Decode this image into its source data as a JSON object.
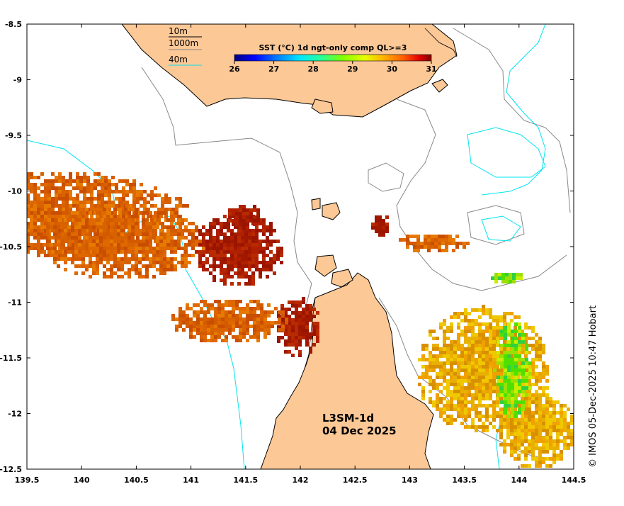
{
  "map": {
    "lon_ticks": [
      "139.5",
      "140",
      "140.5",
      "141",
      "141.5",
      "142",
      "142.5",
      "143",
      "143.5",
      "144",
      "144.5"
    ],
    "lat_ticks": [
      "-8.5",
      "-9",
      "-9.5",
      "-10",
      "-10.5",
      "-11",
      "-11.5",
      "-12",
      "-12.5"
    ],
    "lon_range": [
      139.5,
      144.5
    ],
    "lat_range": [
      -12.5,
      -8.5
    ]
  },
  "depth_legend": {
    "items": [
      {
        "label": "10m",
        "color": "#000000"
      },
      {
        "label": "1000m",
        "color": "#888888"
      },
      {
        "label": "40m",
        "color": "#00e5ee"
      }
    ]
  },
  "colorbar": {
    "title": "SST (°C) 1d ngt-only comp QL>=3",
    "ticks": [
      "26",
      "27",
      "28",
      "29",
      "30",
      "31"
    ],
    "range": [
      26,
      31
    ],
    "colors": [
      "#00007f",
      "#0000ff",
      "#0080ff",
      "#00e5ff",
      "#26ff9a",
      "#80ff00",
      "#e6ff00",
      "#ffb000",
      "#ff5a00",
      "#e00000",
      "#800000"
    ]
  },
  "stamp": {
    "product": "L3SM-1d",
    "date": "04 Dec 2025"
  },
  "credit": "© IMOS 05-Dec-2025 10:47 Hobart"
}
